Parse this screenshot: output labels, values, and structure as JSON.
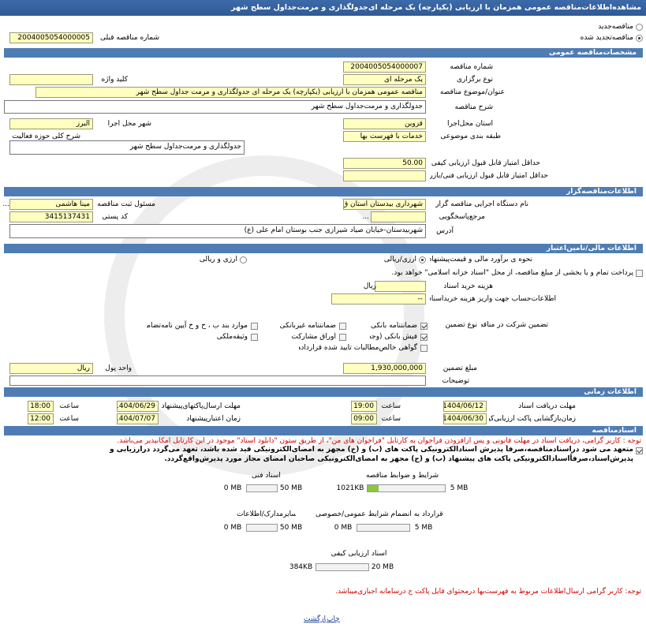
{
  "header": {
    "title": "مشاهده‌اطلاعات‌مناقصه عمومی همزمان با ارزیابی (یکپارچه) یک مرحله ای‌جدولگذاری و مرمت‌جداول سطح شهر"
  },
  "top": {
    "new": "مناقصه‌جدید",
    "renewed": "مناقصه‌تجدید شده",
    "previous_label": "شماره مناقصه قبلی",
    "previous": "2004005054000005"
  },
  "general": {
    "title": "مشخصات‌مناقصه عمومی",
    "number_label": "شماره مناقصه",
    "number": "2004005054000007",
    "type_label": "نوع برگزاری",
    "type": "یک مرحله ای",
    "keyword_label": "کلید واژه",
    "subject_label": "عنوان/موضوع مناقصه",
    "subject": "مناقصه عمومی همزمان با ارزیابی (یکپارچه) یک مرحله ای جدولگذاری و مرمت جداول سطح شهر",
    "desc_label": "شرح مناقصه",
    "desc": "جدولگذاری و مرمت‌جداول سطح شهر",
    "province_label": "استان محل‌اجرا",
    "province": "قزوین",
    "city_label": "شهر محل اجرا",
    "city": "البرز",
    "category_label": "طبقه بندی موضوعی",
    "category": "خدمات با فهرست بها",
    "activity_label": "شرح کلی حوزه فعالیت",
    "activity": "جدولگذاری و مرمت‌جداول سطح شهر",
    "min_quality_label": "حداقل امتیاز قابل قبول ارزیابی کیفی",
    "min_quality": "50.00",
    "min_tech_label": "حداقل امتیاز قابل قبول ارزیابی فنی/بازرگانی"
  },
  "organizer": {
    "title": "اطلاعات‌مناقصه‌گزار",
    "org_label": "نام دستگاه اجرایی مناقصه گزار",
    "org": "شهرداری بیدستان استان ق",
    "registrar_label": "مسئول ثبت مناقصه",
    "registrar": "مینا هاشمی",
    "more": "...",
    "reference_label": "مرجع‌پاسخگویی",
    "reference": "...",
    "postal_label": "کد پستی",
    "postal": "3415137431",
    "address_label": "آدرس",
    "address": "شهربیدستان-خیابان صیاد شیرازی جنب بوستان امام علی (ع)"
  },
  "finance": {
    "title": "اطلاعات مالی/تامین‌اعتبار",
    "estimate_label": "نحوه ی برآورد مالی و قیمت‌پیشنهادی",
    "option_rial": "ارزی/ریالی",
    "option_both": "ارزی و ریالی",
    "treasury": "پرداخت تمام و یا بخشی از مبلغ مناقصه، از محل \"اسناد خزانه اسلامی\" خواهد بود.",
    "doc_fee_label": "هزینه خرید اسناد",
    "doc_fee_unit": "ریال",
    "account_label": "اطلاعات‌حساب جهت واریز هزینه خریداسناد",
    "account": "--",
    "guarantee_label": "تضمین شرکت در مناقصه:",
    "guarantee_type_label": "نوع تضمین",
    "guarantee_types": [
      "ضمانتنامه بانکی",
      "ضمانتنامه غیربانکی",
      "موارد بند ب ، ح و خ آیین نامه‌تضامین",
      "فیش بانکی (وجه نقد)",
      "اوراق مشارکت",
      "وثیقه‌ملکی",
      "گواهی خالص‌مطالبات تایید شده قراردادها"
    ],
    "amount_label": "مبلغ تضمین",
    "amount": "1,930,000,000",
    "currency_label": "واحد پول",
    "currency": "ریال",
    "notes_label": "توضیحات"
  },
  "timing": {
    "title": "اطلاعات زمانی",
    "hour_label": "ساعت",
    "receive_label": "مهلت دریافت اسناد",
    "receive_date": "1404/06/12",
    "receive_time": "19:00",
    "submit_label": "مهلت ارسال‌پاکتهای‌پیشنهاد",
    "submit_date": "1404/06/29",
    "submit_time": "18:00",
    "opening_label": "زمان‌بازگشایی پاکت ارزیابی‌کیفی",
    "opening_date": "1404/06/30",
    "opening_time": "09:00",
    "validity_label": "زمان اعتبارپیشنهاد",
    "validity_date": "1404/07/07",
    "validity_time": "12:00"
  },
  "documents": {
    "title": "اسنادمناقصه",
    "notice": "توجه : کاربر گرامی، دریافت اسناد در مهلت قانونی و پس ازافزودن فراخوان به کارتابل \"فراخوان های من\"، از طریق ستون \"دانلود اسناد\" موجود در این کارتابل امکانپذیر می‌باشد.",
    "commitment": "متعهد می شود دراسنادمناقصه،صرفاً پذیرش اسنادالکترونیکی پاکت های (ب) و (ج) مجهز به امضای‌الکترونیکی قید شده باشد، تعهد می‌گردد درارزیابی و پذیرش‌اسناد،صرفاً‌اسنادالکترونیکی پاکت های پیشنهاد (ب) و (ج) مجهز به امضای‌الکترونیکی صاحبان امضای مجاز مورد پذیرش‌واقع‌گردد.",
    "files": [
      {
        "name": "شرایط و ضوابط مناقصه",
        "used": "1021KB",
        "max": "5 MB"
      },
      {
        "name": "اسناد فنی",
        "used": "0 MB",
        "max": "50 MB"
      },
      {
        "name": "متن قرارداد به انضمام شرایط عمومی/خصوصی",
        "used": "0 MB",
        "max": "5 MB"
      },
      {
        "name": "سایرمدارک/اطلاعات",
        "used": "0 MB",
        "max": "50 MB"
      },
      {
        "name": "اسناد ارزیابی کیفی",
        "used": "384KB",
        "max": "20 MB"
      }
    ],
    "footer_notice": "توجه: کاربر گرامی ارسال‌اطلاعات مربوط به فهرست‌بها درمحتوای فایل پاکت ج درسامانه اجباری‌میباشد."
  },
  "actions": {
    "print": "چاپ",
    "back": "بازگشت"
  }
}
